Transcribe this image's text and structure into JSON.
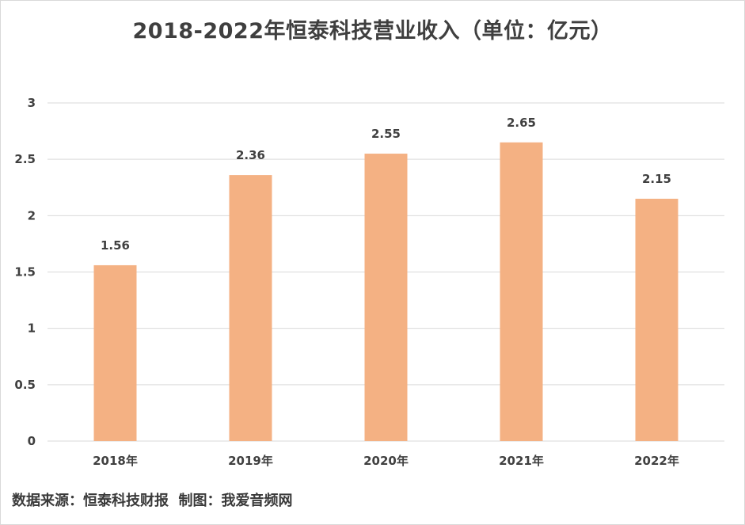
{
  "chart_data": {
    "type": "bar",
    "title": "2018-2022年恒泰科技营业收入（单位：亿元）",
    "categories": [
      "2018年",
      "2019年",
      "2020年",
      "2021年",
      "2022年"
    ],
    "values": [
      1.56,
      2.36,
      2.55,
      2.65,
      2.15
    ],
    "data_labels": [
      "1.56",
      "2.36",
      "2.55",
      "2.65",
      "2.15"
    ],
    "y_ticks": [
      "0",
      "0.5",
      "1",
      "1.5",
      "2",
      "2.5",
      "3"
    ],
    "ylim": [
      0,
      3
    ],
    "grid": true,
    "legend": "none",
    "bar_color": "#f4b183"
  },
  "footer": {
    "source_text": "数据来源：恒泰科技财报  制图：我爱音频网"
  }
}
